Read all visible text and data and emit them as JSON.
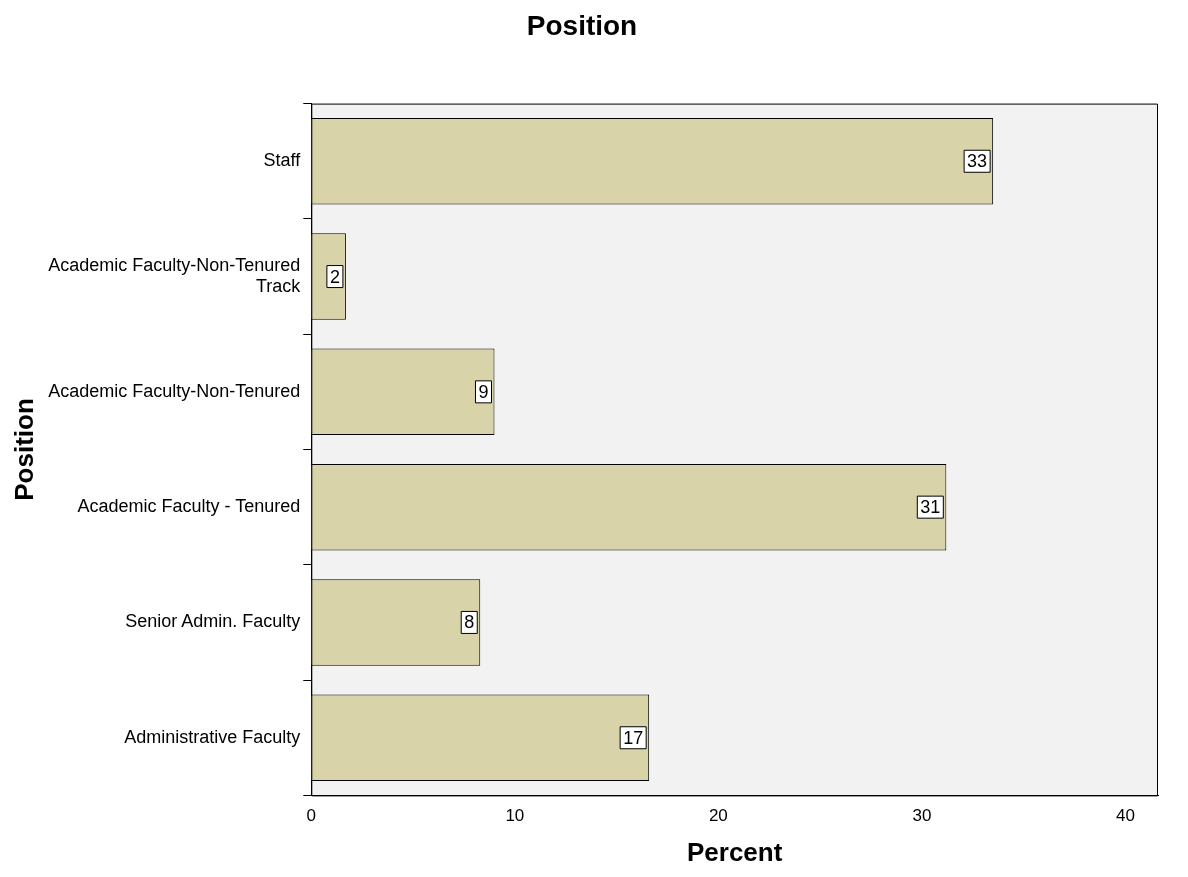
{
  "chart_data": {
    "type": "bar",
    "orientation": "horizontal",
    "title": "Position",
    "xlabel": "Percent",
    "ylabel": "Position",
    "categories": [
      "Staff",
      "Academic Faculty-Non-Tenured Track",
      "Academic Faculty-Non-Tenured",
      "Academic Faculty - Tenured",
      "Senior Admin. Faculty",
      "Administrative Faculty"
    ],
    "values": [
      33.5,
      1.7,
      9.0,
      31.2,
      8.3,
      16.6
    ],
    "value_labels": [
      "33",
      "2",
      "9",
      "31",
      "8",
      "17"
    ],
    "color": "#d8d3a8",
    "xlim": [
      0,
      41.6
    ],
    "xticks": [
      0,
      10,
      20,
      30,
      40
    ],
    "grid": false,
    "legend": false
  }
}
